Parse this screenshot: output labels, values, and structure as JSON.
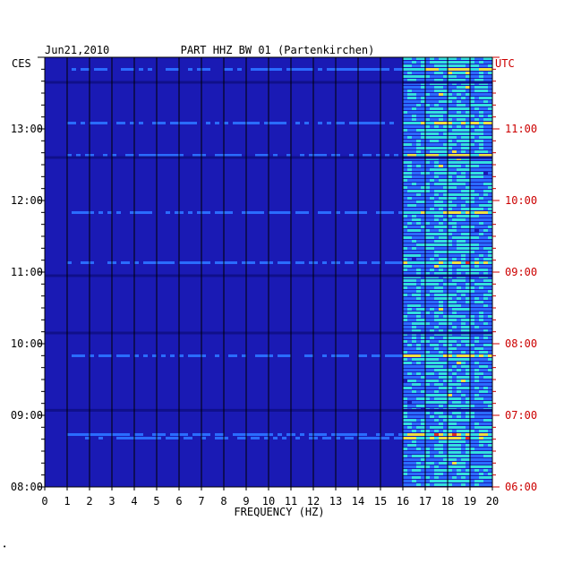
{
  "chart_data": {
    "type": "heatmap",
    "title": "PART HHZ BW 01 (Partenkirchen)",
    "date": "Jun21,2010",
    "xlabel": "FREQUENCY (HZ)",
    "left_axis_label": "CES",
    "right_axis_label": "UTC",
    "xlim": [
      0,
      20
    ],
    "x_ticks": [
      "0",
      "1",
      "2",
      "3",
      "4",
      "5",
      "6",
      "7",
      "8",
      "9",
      "10",
      "11",
      "12",
      "13",
      "14",
      "15",
      "16",
      "17",
      "18",
      "19",
      "20"
    ],
    "ylim_hours_ces": [
      8,
      14
    ],
    "y_ticks_left": [
      {
        "hour": 8,
        "label": "08:00"
      },
      {
        "hour": 9,
        "label": "09:00"
      },
      {
        "hour": 10,
        "label": "10:00"
      },
      {
        "hour": 11,
        "label": "11:00"
      },
      {
        "hour": 12,
        "label": "12:00"
      },
      {
        "hour": 13,
        "label": "13:00"
      }
    ],
    "y_ticks_right": [
      {
        "hour": 8,
        "label": "06:00"
      },
      {
        "hour": 9,
        "label": "07:00"
      },
      {
        "hour": 10,
        "label": "08:00"
      },
      {
        "hour": 11,
        "label": "09:00"
      },
      {
        "hour": 12,
        "label": "10:00"
      },
      {
        "hour": 13,
        "label": "11:00"
      }
    ],
    "colors": {
      "background": "#1a1ab4",
      "low": "#10108a",
      "mid": "#2a6cff",
      "high": "#33e0e0",
      "peak": "#f0e040",
      "extreme": "#e03020",
      "grid": "#000000",
      "utc_text": "#cc0000"
    }
  },
  "footer_mark": "•"
}
